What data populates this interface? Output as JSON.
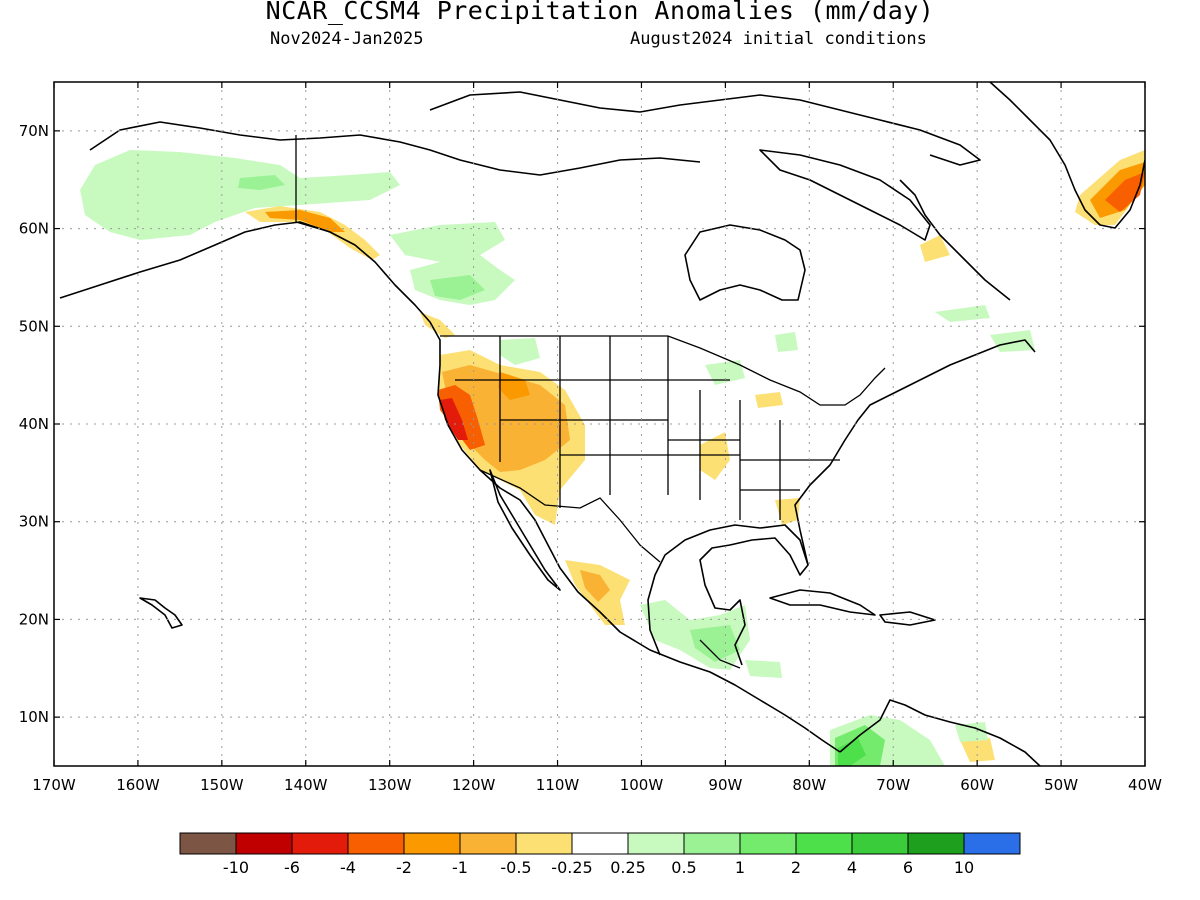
{
  "title": "NCAR_CCSM4 Precipitation Anomalies (mm/day)",
  "subtitle_left": "Nov2024-Jan2025",
  "subtitle_right": "August2024 initial conditions",
  "map": {
    "lon_range": [
      -170,
      -40
    ],
    "lat_range": [
      5,
      75
    ],
    "projection": "cylindrical",
    "grid": "dotted",
    "lat_tick_labels": [
      "10N",
      "20N",
      "30N",
      "40N",
      "50N",
      "60N",
      "70N"
    ],
    "lat_tick_values": [
      10,
      20,
      30,
      40,
      50,
      60,
      70
    ],
    "lon_tick_labels": [
      "170W",
      "160W",
      "150W",
      "140W",
      "130W",
      "120W",
      "110W",
      "100W",
      "90W",
      "80W",
      "70W",
      "60W",
      "50W",
      "40W"
    ],
    "lon_tick_values": [
      -170,
      -160,
      -150,
      -140,
      -130,
      -120,
      -110,
      -100,
      -90,
      -80,
      -70,
      -60,
      -50,
      -40
    ],
    "anomaly_regions": [
      {
        "region": "California / Nevada coast",
        "category": "-4 to -2"
      },
      {
        "region": "Great Basin / Southwest US",
        "category": "-1 to -0.5"
      },
      {
        "region": "Western Mexico",
        "category": "-1 to -0.5"
      },
      {
        "region": "Southeast Alaska coast",
        "category": "-2 to -1"
      },
      {
        "region": "Southern Greenland coast",
        "category": "-4 to -2"
      },
      {
        "region": "Alaska interior",
        "category": "0.25 to 0.5"
      },
      {
        "region": "Western Canada",
        "category": "0.5 to 1"
      },
      {
        "region": "Southern Mexico / Central America",
        "category": "0.5 to 2"
      },
      {
        "region": "Northern South America (Colombia)",
        "category": "2 to 4"
      }
    ]
  },
  "colorbar": {
    "colors": [
      "#7d5545",
      "#c00000",
      "#e31b0a",
      "#f75f00",
      "#fa9a00",
      "#f9b233",
      "#fde073",
      "#ffffff",
      "#c8fac0",
      "#9af294",
      "#74eb6c",
      "#4ee04a",
      "#3acc3a",
      "#1ea01e",
      "#2a6fe8"
    ],
    "labels": [
      "-10",
      "-6",
      "-4",
      "-2",
      "-1",
      "-0.5",
      "-0.25",
      "0.25",
      "0.5",
      "1",
      "2",
      "4",
      "6",
      "10"
    ]
  }
}
